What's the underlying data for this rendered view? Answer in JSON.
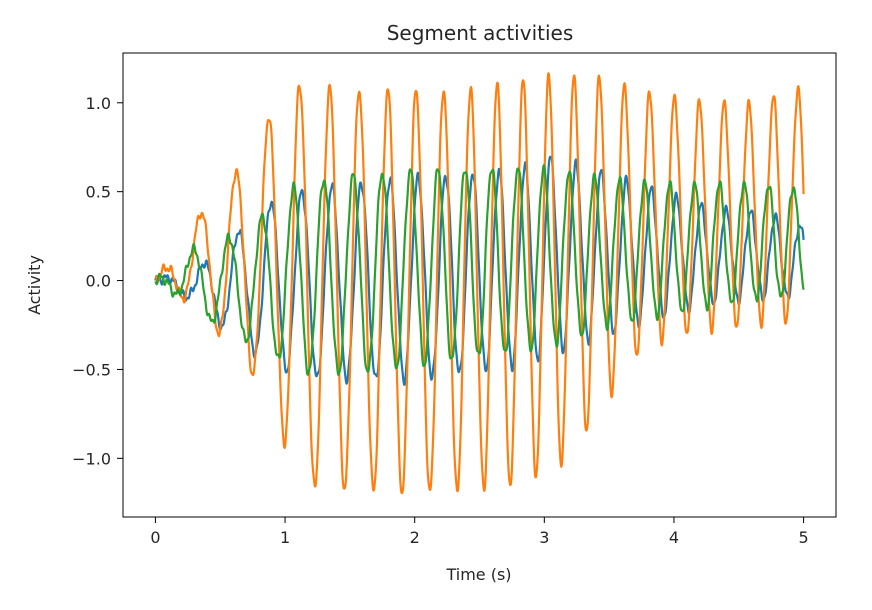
{
  "chart_data": {
    "type": "line",
    "title": "Segment activities",
    "xlabel": "Time (s)",
    "ylabel": "Activity",
    "xlim": [
      -0.25,
      5.25
    ],
    "ylim": [
      -1.33,
      1.28
    ],
    "grid": false,
    "legend": "none",
    "x_ticks": [
      0,
      1,
      2,
      3,
      4,
      5
    ],
    "x_tick_labels": [
      "0",
      "1",
      "2",
      "3",
      "4",
      "5"
    ],
    "y_ticks": [
      1.0,
      0.5,
      0.0,
      -0.5,
      -1.0
    ],
    "y_tick_labels": [
      "1.0",
      "0.5",
      "0.0",
      "−0.5",
      "−1.0"
    ],
    "time_range": [
      0,
      5
    ],
    "series": [
      {
        "color": "#1f77b4",
        "peaks": [
          [
            0.0,
            0.0
          ],
          [
            0.3,
            0.05
          ],
          [
            0.6,
            0.25
          ],
          [
            0.9,
            0.45
          ],
          [
            1.2,
            0.52
          ],
          [
            2.0,
            0.58
          ],
          [
            2.8,
            0.62
          ],
          [
            3.0,
            0.7
          ],
          [
            3.4,
            0.62
          ],
          [
            3.8,
            0.52
          ],
          [
            4.3,
            0.4
          ],
          [
            4.7,
            0.38
          ],
          [
            5.0,
            0.3
          ]
        ],
        "troughs": [
          [
            0.0,
            0.0
          ],
          [
            0.3,
            -0.12
          ],
          [
            0.6,
            -0.32
          ],
          [
            0.9,
            -0.48
          ],
          [
            1.2,
            -0.55
          ],
          [
            2.0,
            -0.56
          ],
          [
            2.8,
            -0.48
          ],
          [
            3.4,
            -0.32
          ],
          [
            3.8,
            -0.22
          ],
          [
            4.3,
            -0.12
          ],
          [
            4.7,
            -0.1
          ],
          [
            5.0,
            -0.08
          ]
        ]
      },
      {
        "color": "#ff7f0e",
        "peaks": [
          [
            0.0,
            0.0
          ],
          [
            0.1,
            0.1
          ],
          [
            0.28,
            0.33
          ],
          [
            0.47,
            0.47
          ],
          [
            0.66,
            0.65
          ],
          [
            0.87,
            0.92
          ],
          [
            1.1,
            1.1
          ],
          [
            1.5,
            1.07
          ],
          [
            2.0,
            1.07
          ],
          [
            2.5,
            1.08
          ],
          [
            3.0,
            1.14
          ],
          [
            3.4,
            1.14
          ],
          [
            3.8,
            1.05
          ],
          [
            4.2,
            1.0
          ],
          [
            4.6,
            0.99
          ],
          [
            4.95,
            1.07
          ]
        ],
        "troughs": [
          [
            0.0,
            0.0
          ],
          [
            0.18,
            -0.08
          ],
          [
            0.38,
            -0.22
          ],
          [
            0.57,
            -0.35
          ],
          [
            0.77,
            -0.55
          ],
          [
            1.0,
            -0.92
          ],
          [
            1.2,
            -1.16
          ],
          [
            1.8,
            -1.19
          ],
          [
            2.3,
            -1.19
          ],
          [
            2.7,
            -1.15
          ],
          [
            3.1,
            -1.05
          ],
          [
            3.4,
            -0.77
          ],
          [
            3.7,
            -0.42
          ],
          [
            4.0,
            -0.3
          ],
          [
            4.5,
            -0.25
          ],
          [
            5.0,
            -0.22
          ]
        ]
      },
      {
        "color": "#2ca02c",
        "peaks": [
          [
            0.0,
            0.0
          ],
          [
            0.1,
            0.06
          ],
          [
            0.3,
            0.18
          ],
          [
            0.6,
            0.25
          ],
          [
            0.9,
            0.4
          ],
          [
            1.1,
            0.55
          ],
          [
            1.6,
            0.6
          ],
          [
            2.0,
            0.62
          ],
          [
            2.6,
            0.64
          ],
          [
            3.0,
            0.63
          ],
          [
            3.5,
            0.57
          ],
          [
            4.0,
            0.54
          ],
          [
            4.5,
            0.55
          ],
          [
            5.0,
            0.52
          ]
        ],
        "troughs": [
          [
            0.0,
            0.0
          ],
          [
            0.1,
            -0.04
          ],
          [
            0.3,
            -0.18
          ],
          [
            0.6,
            -0.3
          ],
          [
            0.9,
            -0.42
          ],
          [
            1.1,
            -0.52
          ],
          [
            1.6,
            -0.52
          ],
          [
            2.0,
            -0.48
          ],
          [
            2.6,
            -0.42
          ],
          [
            3.0,
            -0.38
          ],
          [
            3.5,
            -0.25
          ],
          [
            4.0,
            -0.18
          ],
          [
            4.5,
            -0.12
          ],
          [
            5.0,
            -0.08
          ]
        ]
      }
    ]
  }
}
